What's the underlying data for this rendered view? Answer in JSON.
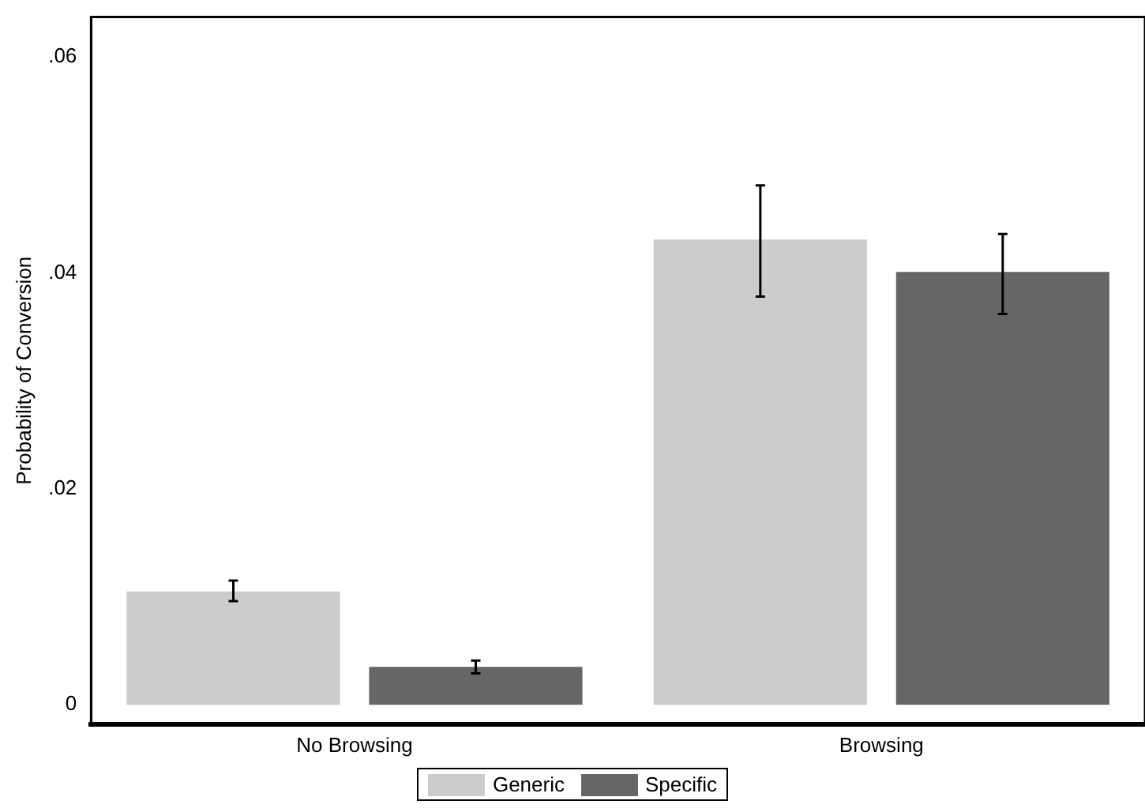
{
  "chart_data": {
    "type": "bar",
    "ylabel": "Probability of Conversion",
    "categories": [
      "No Browsing",
      "Browsing"
    ],
    "series": [
      {
        "name": "Generic",
        "color": "#cccccc",
        "values": [
          0.0105,
          0.0431
        ],
        "errors": [
          [
            0.0096,
            0.0115
          ],
          [
            0.0378,
            0.0481
          ]
        ]
      },
      {
        "name": "Specific",
        "color": "#666666",
        "values": [
          0.0035,
          0.0401
        ],
        "errors": [
          [
            0.0029,
            0.0041
          ],
          [
            0.0362,
            0.0436
          ]
        ]
      }
    ],
    "ylim": [
      -0.0018,
      0.0637
    ],
    "yticks": [
      {
        "value": 0,
        "label": "0"
      },
      {
        "value": 0.02,
        "label": ".02"
      },
      {
        "value": 0.04,
        "label": ".04"
      },
      {
        "value": 0.06,
        "label": ".06"
      }
    ],
    "grid": false,
    "legend": "bottom"
  }
}
